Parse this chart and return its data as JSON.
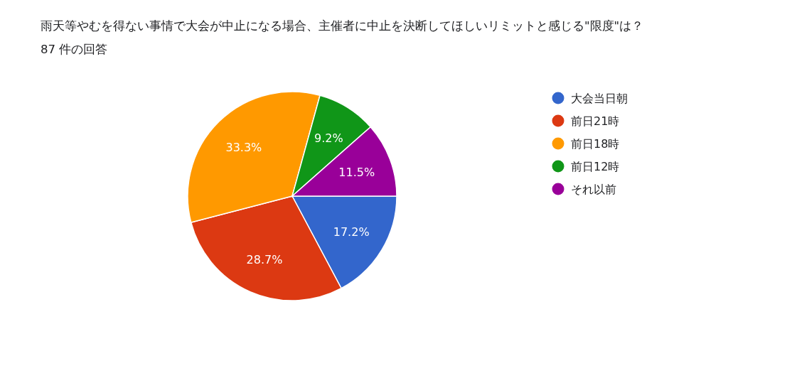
{
  "chart_data": {
    "type": "pie",
    "title": "雨天等やむを得ない事情で大会が中止になる場合、主催者に中止を決断してほしいリミットと感じる\"限度\"は？",
    "subtitle": "87 件の回答",
    "categories": [
      "大会当日朝",
      "前日21時",
      "前日18時",
      "前日12時",
      "それ以前"
    ],
    "values": [
      17.2,
      28.7,
      33.3,
      9.2,
      11.5
    ],
    "colors": [
      "#3366cc",
      "#dc3912",
      "#ff9900",
      "#109618",
      "#990099"
    ],
    "value_labels": [
      "17.2%",
      "28.7%",
      "33.3%",
      "9.2%",
      "11.5%"
    ],
    "legend": "right"
  }
}
